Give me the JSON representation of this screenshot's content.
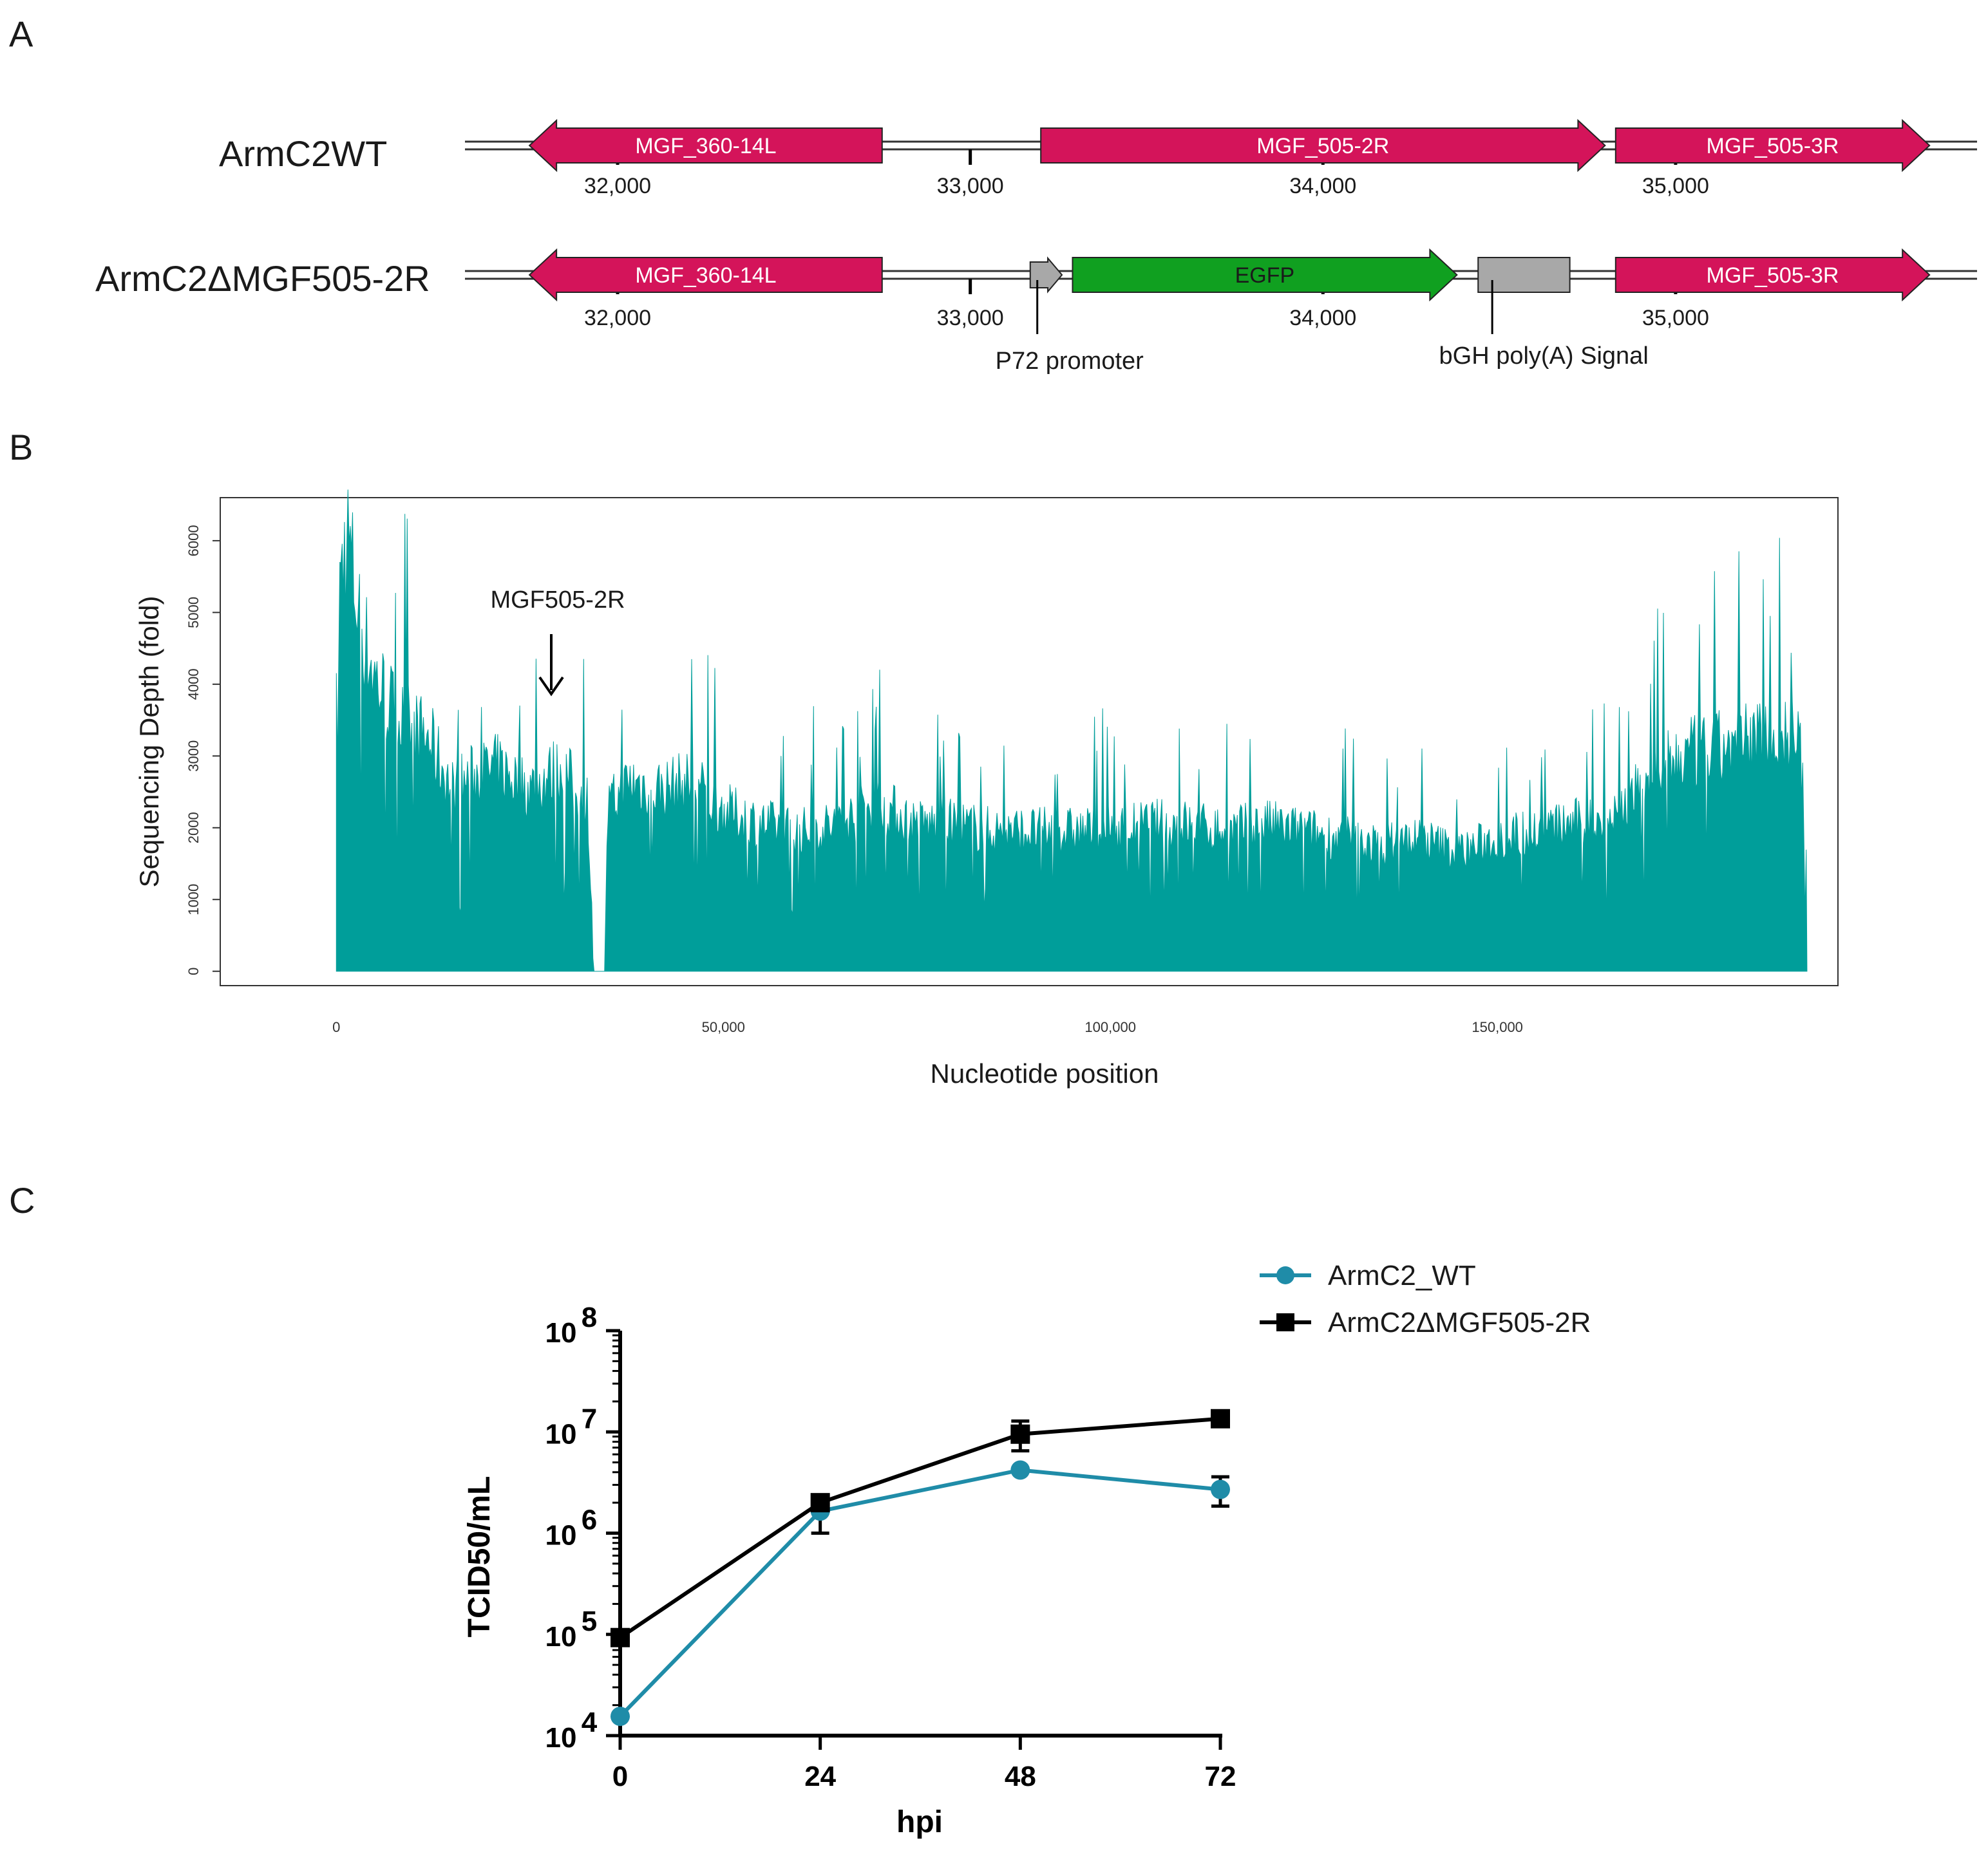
{
  "panels": {
    "a": "A",
    "b": "B",
    "c": "C"
  },
  "colors": {
    "gene_magenta": "#d4145a",
    "egfp_green": "#10a020",
    "gray_box": "#a8a8a8",
    "teal": "#009e9a",
    "wt_blue": "#1f8ca8",
    "black": "#000000"
  },
  "chart_data": [
    {
      "type": "gene-map",
      "axis_range": [
        31600,
        35800
      ],
      "tracks": [
        {
          "name": "ArmC2WT",
          "ticks": [
            {
              "value": 32000,
              "label": "32,000"
            },
            {
              "value": 33000,
              "label": "33,000"
            },
            {
              "value": 34000,
              "label": "34,000"
            },
            {
              "value": 35000,
              "label": "35,000"
            }
          ],
          "features": [
            {
              "label": "MGF_360-14L",
              "start": 31750,
              "end": 32750,
              "strand": "-",
              "kind": "gene",
              "color": "#d4145a"
            },
            {
              "label": "MGF_505-2R",
              "start": 33200,
              "end": 34800,
              "strand": "+",
              "kind": "gene",
              "color": "#d4145a"
            },
            {
              "label": "MGF_505-3R",
              "start": 34830,
              "end": 35720,
              "strand": "+",
              "kind": "gene",
              "color": "#d4145a"
            }
          ]
        },
        {
          "name": "ArmC2ΔMGF505-2R",
          "ticks": [
            {
              "value": 32000,
              "label": "32,000"
            },
            {
              "value": 33000,
              "label": "33,000"
            },
            {
              "value": 34000,
              "label": "34,000"
            },
            {
              "value": 35000,
              "label": "35,000"
            }
          ],
          "features": [
            {
              "label": "MGF_360-14L",
              "start": 31750,
              "end": 32750,
              "strand": "-",
              "kind": "gene",
              "color": "#d4145a"
            },
            {
              "label": "",
              "start": 33170,
              "end": 33260,
              "strand": "+",
              "kind": "promoter",
              "color": "#a8a8a8"
            },
            {
              "label": "EGFP",
              "start": 33290,
              "end": 34380,
              "strand": "+",
              "kind": "gene",
              "color": "#10a020"
            },
            {
              "label": "",
              "start": 34440,
              "end": 34700,
              "strand": "none",
              "kind": "box",
              "color": "#a8a8a8"
            },
            {
              "label": "MGF_505-3R",
              "start": 34830,
              "end": 35720,
              "strand": "+",
              "kind": "gene",
              "color": "#d4145a"
            }
          ],
          "annotations": [
            {
              "text": "P72 promoter",
              "position": 33190
            },
            {
              "text": "bGH poly(A) Signal",
              "position": 34480
            }
          ]
        }
      ]
    },
    {
      "type": "area",
      "xlabel": "Nucleotide position",
      "ylabel": "Sequencing Depth (fold)",
      "xlim": [
        -15000,
        194000
      ],
      "ylim": [
        -200,
        6600
      ],
      "xticks": [
        {
          "value": 0,
          "label": "0"
        },
        {
          "value": 50000,
          "label": "50,000"
        },
        {
          "value": 100000,
          "label": "100,000"
        },
        {
          "value": 150000,
          "label": "150,000"
        }
      ],
      "yticks": [
        {
          "value": 0,
          "label": "0"
        },
        {
          "value": 1000,
          "label": "1000"
        },
        {
          "value": 2000,
          "label": "2000"
        },
        {
          "value": 3000,
          "label": "3000"
        },
        {
          "value": 4000,
          "label": "4000"
        },
        {
          "value": 5000,
          "label": "5000"
        },
        {
          "value": 6000,
          "label": "6000"
        }
      ],
      "genome_length": 190000,
      "gap_range": [
        33200,
        34700
      ],
      "profile": [
        [
          0,
          2300
        ],
        [
          500,
          5700
        ],
        [
          1500,
          6200
        ],
        [
          3000,
          5000
        ],
        [
          5000,
          4200
        ],
        [
          8000,
          3600
        ],
        [
          12000,
          3300
        ],
        [
          15000,
          2600
        ],
        [
          18000,
          2800
        ],
        [
          21000,
          2900
        ],
        [
          25000,
          2600
        ],
        [
          29000,
          2900
        ],
        [
          31000,
          2600
        ],
        [
          32500,
          2400
        ],
        [
          33200,
          0
        ],
        [
          34700,
          0
        ],
        [
          35000,
          2300
        ],
        [
          38000,
          2700
        ],
        [
          42000,
          2600
        ],
        [
          46000,
          2700
        ],
        [
          50000,
          2300
        ],
        [
          55000,
          2100
        ],
        [
          60000,
          2000
        ],
        [
          65000,
          2100
        ],
        [
          70000,
          2400
        ],
        [
          75000,
          2100
        ],
        [
          80000,
          2100
        ],
        [
          85000,
          2000
        ],
        [
          90000,
          2000
        ],
        [
          95000,
          2000
        ],
        [
          100000,
          2000
        ],
        [
          105000,
          2100
        ],
        [
          110000,
          2100
        ],
        [
          115000,
          2000
        ],
        [
          120000,
          2100
        ],
        [
          125000,
          2000
        ],
        [
          130000,
          1900
        ],
        [
          135000,
          1800
        ],
        [
          140000,
          1900
        ],
        [
          145000,
          1700
        ],
        [
          150000,
          1900
        ],
        [
          155000,
          2000
        ],
        [
          160000,
          2100
        ],
        [
          165000,
          2200
        ],
        [
          170000,
          2800
        ],
        [
          175000,
          3100
        ],
        [
          180000,
          3200
        ],
        [
          185000,
          3400
        ],
        [
          189000,
          3300
        ],
        [
          190000,
          1600
        ]
      ],
      "annotations": [
        {
          "text": "MGF505-2R",
          "x": 34000
        }
      ]
    },
    {
      "type": "line",
      "xlabel": "hpi",
      "ylabel": "TCID50/mL",
      "y_scale": "log",
      "ylim": [
        10000,
        100000000
      ],
      "x": [
        0,
        24,
        48,
        72
      ],
      "xticks": [
        {
          "value": 0,
          "label": "0"
        },
        {
          "value": 24,
          "label": "24"
        },
        {
          "value": 48,
          "label": "48"
        },
        {
          "value": 72,
          "label": "72"
        }
      ],
      "yticks": [
        {
          "value": 10000,
          "base": "10",
          "exp": "4"
        },
        {
          "value": 100000,
          "base": "10",
          "exp": "5"
        },
        {
          "value": 1000000,
          "base": "10",
          "exp": "6"
        },
        {
          "value": 10000000,
          "base": "10",
          "exp": "7"
        },
        {
          "value": 100000000,
          "base": "10",
          "exp": "8"
        }
      ],
      "legend_position": "top-right",
      "series": [
        {
          "name": "ArmC2_WT",
          "marker": "circle",
          "color": "#1f8ca8",
          "values": [
            15500,
            1650000,
            4200000,
            2700000
          ],
          "err_lo": [
            null,
            1000000,
            null,
            1850000
          ],
          "err_hi": [
            null,
            null,
            null,
            3600000
          ]
        },
        {
          "name": "ArmC2ΔMGF505-2R",
          "marker": "square",
          "color": "#000000",
          "values": [
            93000,
            2000000,
            9500000,
            13500000
          ],
          "err_lo": [
            null,
            null,
            6500000,
            null
          ],
          "err_hi": [
            null,
            null,
            12800000,
            null
          ]
        }
      ]
    }
  ]
}
